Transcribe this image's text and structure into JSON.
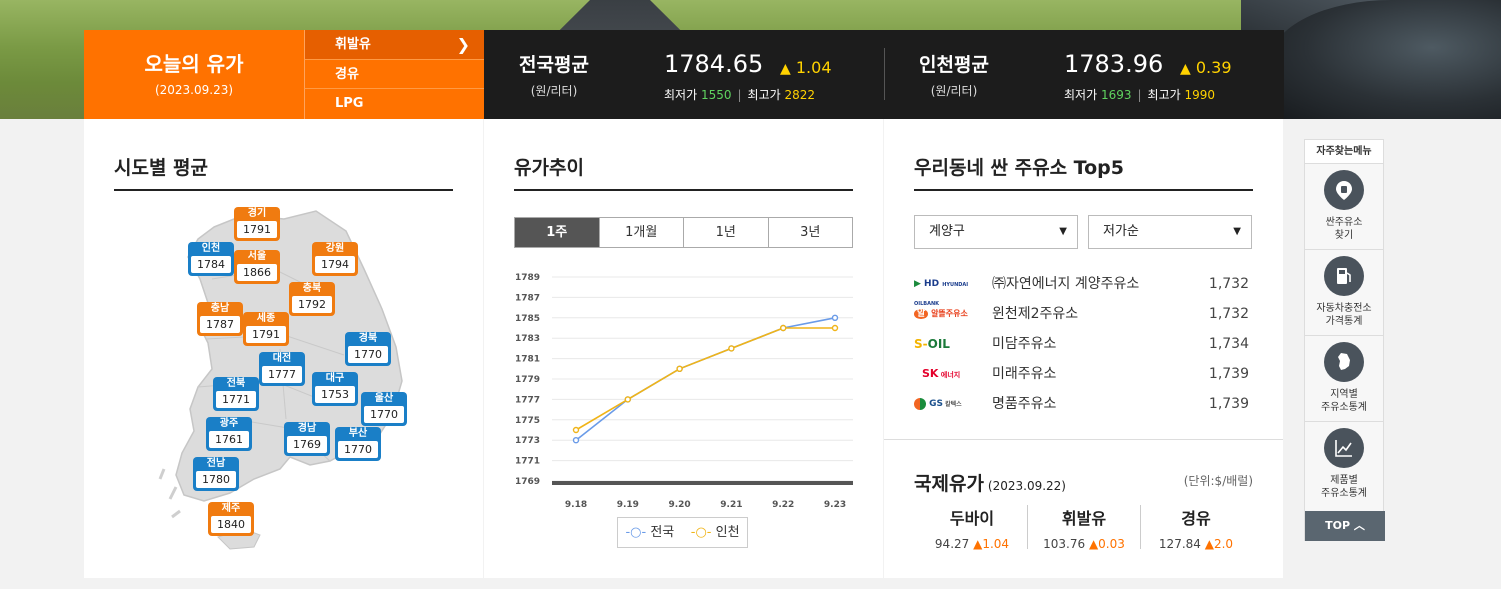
{
  "today": {
    "title": "오늘의 유가",
    "date": "(2023.09.23)"
  },
  "fuel_tabs": [
    {
      "label": "휘발유",
      "active": true
    },
    {
      "label": "경유",
      "active": false
    },
    {
      "label": "LPG",
      "active": false
    }
  ],
  "national": {
    "title": "전국평균",
    "unit": "(원/리터)",
    "price": "1784.65",
    "change": "1.04",
    "min_label": "최저가",
    "min": "1550",
    "max_label": "최고가",
    "max": "2822"
  },
  "incheon": {
    "title": "인천평균",
    "unit": "(원/리터)",
    "price": "1783.96",
    "change": "0.39",
    "min_label": "최저가",
    "min": "1693",
    "max_label": "최고가",
    "max": "1990"
  },
  "map": {
    "title": "시도별 평균",
    "regions": [
      {
        "name": "경기",
        "value": "1791",
        "color": "orange"
      },
      {
        "name": "인천",
        "value": "1784",
        "color": "blue"
      },
      {
        "name": "서울",
        "value": "1866",
        "color": "orange"
      },
      {
        "name": "강원",
        "value": "1794",
        "color": "orange"
      },
      {
        "name": "충북",
        "value": "1792",
        "color": "orange"
      },
      {
        "name": "충남",
        "value": "1787",
        "color": "orange"
      },
      {
        "name": "세종",
        "value": "1791",
        "color": "orange"
      },
      {
        "name": "경북",
        "value": "1770",
        "color": "blue"
      },
      {
        "name": "대전",
        "value": "1777",
        "color": "blue"
      },
      {
        "name": "대구",
        "value": "1753",
        "color": "blue"
      },
      {
        "name": "전북",
        "value": "1771",
        "color": "blue"
      },
      {
        "name": "울산",
        "value": "1770",
        "color": "blue"
      },
      {
        "name": "광주",
        "value": "1761",
        "color": "blue"
      },
      {
        "name": "경남",
        "value": "1769",
        "color": "blue"
      },
      {
        "name": "부산",
        "value": "1770",
        "color": "blue"
      },
      {
        "name": "전남",
        "value": "1780",
        "color": "blue"
      },
      {
        "name": "제주",
        "value": "1840",
        "color": "orange"
      }
    ]
  },
  "trend": {
    "title": "유가추이",
    "tabs": [
      {
        "label": "1주",
        "active": true
      },
      {
        "label": "1개월",
        "active": false
      },
      {
        "label": "1년",
        "active": false
      },
      {
        "label": "3년",
        "active": false
      }
    ],
    "legend_national": "전국",
    "legend_incheon": "인천"
  },
  "chart_data": {
    "type": "line",
    "x": [
      "9.18",
      "9.19",
      "9.20",
      "9.21",
      "9.22",
      "9.23"
    ],
    "yticks": [
      "1789",
      "1787",
      "1785",
      "1783",
      "1781",
      "1779",
      "1777",
      "1775",
      "1773",
      "1771",
      "1769"
    ],
    "ylim": [
      1769,
      1789
    ],
    "series": [
      {
        "name": "전국",
        "color": "#6a9be8",
        "values": [
          1773,
          1777,
          1780,
          1782,
          1784,
          1785
        ]
      },
      {
        "name": "인천",
        "color": "#f0b418",
        "values": [
          1774,
          1777,
          1780,
          1782,
          1784,
          1784
        ]
      }
    ],
    "grid": true,
    "legend": "bottom"
  },
  "top5": {
    "title": "우리동네 싼 주유소 Top5",
    "district": "계양구",
    "sort": "저가순",
    "stations": [
      {
        "brand": "HD HYUNDAI OILBANK",
        "brand_icon": "hd-oilbank-logo",
        "name": "㈜자연에너지 계양주유소",
        "price": "1,732"
      },
      {
        "brand": "알뜰주유소",
        "brand_icon": "altteul-logo",
        "name": "윈천제2주유소",
        "price": "1,732"
      },
      {
        "brand": "S-OIL",
        "brand_icon": "s-oil-logo",
        "name": "미담주유소",
        "price": "1,734"
      },
      {
        "brand": "SK 에너지",
        "brand_icon": "sk-energy-logo",
        "name": "미래주유소",
        "price": "1,739"
      },
      {
        "brand": "GS 칼텍스",
        "brand_icon": "gs-caltex-logo",
        "name": "명품주유소",
        "price": "1,739"
      }
    ]
  },
  "intl": {
    "title": "국제유가",
    "date": "(2023.09.22)",
    "unit": "(단위:$/배럴)",
    "items": [
      {
        "name": "두바이",
        "value": "94.27",
        "change": "1.04"
      },
      {
        "name": "휘발유",
        "value": "103.76",
        "change": "0.03"
      },
      {
        "name": "경유",
        "value": "127.84",
        "change": "2.0"
      }
    ]
  },
  "quick_menu": {
    "title": "자주찾는메뉴",
    "items": [
      {
        "label1": "싼주유소",
        "label2": "찾기"
      },
      {
        "label1": "자동차충전소",
        "label2": "가격통계"
      },
      {
        "label1": "지역별",
        "label2": "주유소통계"
      },
      {
        "label1": "제품별",
        "label2": "주유소통계"
      }
    ],
    "top_label": "TOP"
  },
  "colors": {
    "accent": "#ff7200",
    "dark": "#1c1c1c",
    "up": "#ffd200",
    "low": "#5fd35f"
  }
}
